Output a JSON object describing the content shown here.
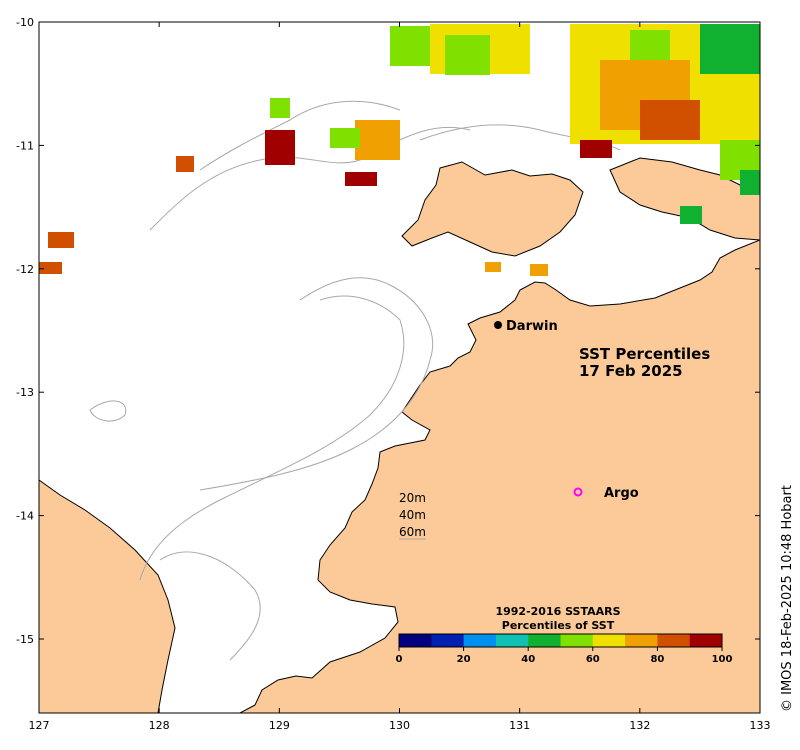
{
  "map": {
    "title_line1": "SST Percentiles",
    "title_line2": "17 Feb 2025",
    "credit": "© IMOS 18-Feb-2025 10:48 Hobart",
    "x_ticks": [
      "127",
      "128",
      "129",
      "130",
      "131",
      "132",
      "133"
    ],
    "y_ticks": [
      "-10",
      "-11",
      "-12",
      "-13",
      "-14",
      "-15"
    ],
    "places": {
      "darwin": "Darwin",
      "argo": "Argo"
    },
    "contour_legend": [
      "20m",
      "40m",
      "60m"
    ],
    "colorbar": {
      "title_line1": "1992-2016 SSTAARS",
      "title_line2": "Percentiles of SST",
      "labels": [
        "0",
        "20",
        "40",
        "60",
        "80",
        "100"
      ],
      "colors": [
        "#00007f",
        "#0020b0",
        "#0090f0",
        "#10c0b0",
        "#10b030",
        "#80e000",
        "#f0e000",
        "#f0a000",
        "#d05000",
        "#a00000"
      ]
    },
    "colors": {
      "land": "#fcca98",
      "ocean": "#ffffff",
      "contour": "#a8a8a8",
      "argo": "#ff00ff"
    }
  }
}
